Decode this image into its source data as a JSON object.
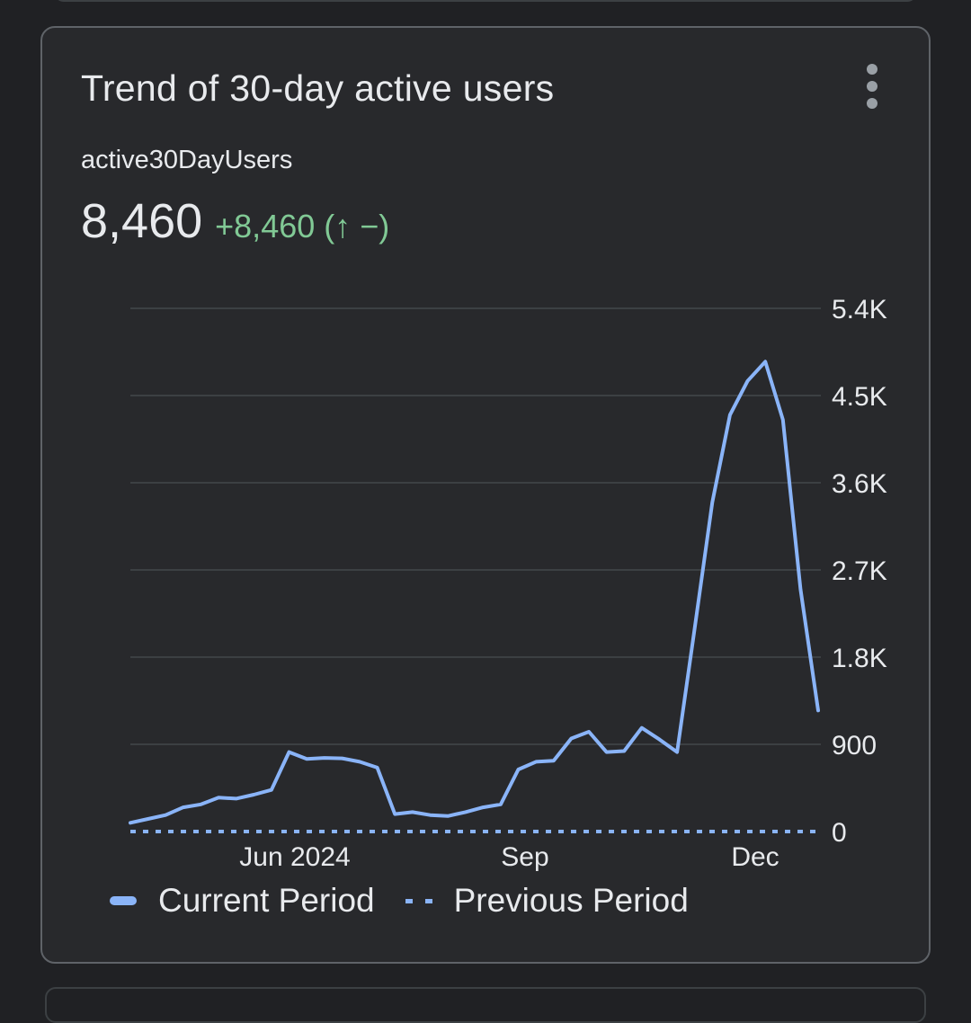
{
  "card": {
    "title": "Trend of 30-day active users",
    "menu_icon": "more-vert-icon",
    "metric_name": "active30DayUsers",
    "metric_value": "8,460",
    "metric_change": "+8,460 (↑ −)"
  },
  "colors": {
    "background": "#202124",
    "card": "#28292c",
    "series": "#8ab4f8",
    "positive": "#81c995",
    "text": "#e8eaed",
    "grid": "#3c4043"
  },
  "legend": {
    "current": "Current Period",
    "previous": "Previous Period"
  },
  "chart_data": {
    "type": "line",
    "title": "Trend of 30-day active users",
    "xlabel": "",
    "ylabel": "",
    "x_tick_labels": [
      "Jun 2024",
      "Sep",
      "Dec"
    ],
    "y_tick_labels": [
      "0",
      "900",
      "1.8K",
      "2.7K",
      "3.6K",
      "4.5K",
      "5.4K"
    ],
    "ylim": [
      0,
      5400
    ],
    "y_axis_position": "right",
    "grid": true,
    "legend_position": "bottom-left",
    "series": [
      {
        "name": "Current Period",
        "style": "solid",
        "values": [
          90,
          130,
          170,
          250,
          280,
          350,
          340,
          380,
          430,
          820,
          750,
          760,
          755,
          720,
          660,
          180,
          200,
          170,
          160,
          200,
          250,
          280,
          640,
          720,
          730,
          960,
          1030,
          820,
          830,
          1070,
          950,
          820,
          2100,
          3400,
          4300,
          4650,
          4850,
          4250,
          2500,
          1250
        ]
      },
      {
        "name": "Previous Period",
        "style": "dotted",
        "values": [
          0,
          0,
          0,
          0,
          0,
          0,
          0,
          0,
          0,
          0,
          0,
          0,
          0,
          0,
          0,
          0,
          0,
          0,
          0,
          0,
          0,
          0,
          0,
          0,
          0,
          0,
          0,
          0,
          0,
          0,
          0,
          0,
          0,
          0,
          0,
          0,
          0,
          0,
          0,
          0
        ]
      }
    ]
  }
}
